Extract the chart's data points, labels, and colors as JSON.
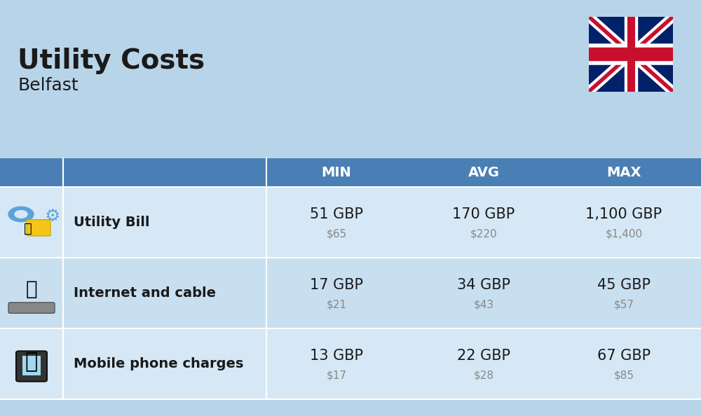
{
  "title": "Utility Costs",
  "subtitle": "Belfast",
  "bg_color": "#b8d4e8",
  "header_bg": "#4a7fb5",
  "header_text_color": "#ffffff",
  "row_bg_light": "#d6e8f5",
  "row_bg_dark": "#c8dff0",
  "col_headers": [
    "MIN",
    "AVG",
    "MAX"
  ],
  "rows": [
    {
      "label": "Utility Bill",
      "min_gbp": "51 GBP",
      "min_usd": "$65",
      "avg_gbp": "170 GBP",
      "avg_usd": "$220",
      "max_gbp": "1,100 GBP",
      "max_usd": "$1,400",
      "icon": "utility"
    },
    {
      "label": "Internet and cable",
      "min_gbp": "17 GBP",
      "min_usd": "$21",
      "avg_gbp": "34 GBP",
      "avg_usd": "$43",
      "max_gbp": "45 GBP",
      "max_usd": "$57",
      "icon": "internet"
    },
    {
      "label": "Mobile phone charges",
      "min_gbp": "13 GBP",
      "min_usd": "$17",
      "avg_gbp": "22 GBP",
      "avg_usd": "$28",
      "max_gbp": "67 GBP",
      "max_usd": "$85",
      "icon": "mobile"
    }
  ],
  "title_fontsize": 28,
  "subtitle_fontsize": 18,
  "header_fontsize": 14,
  "label_fontsize": 14,
  "value_fontsize": 15,
  "usd_fontsize": 11
}
